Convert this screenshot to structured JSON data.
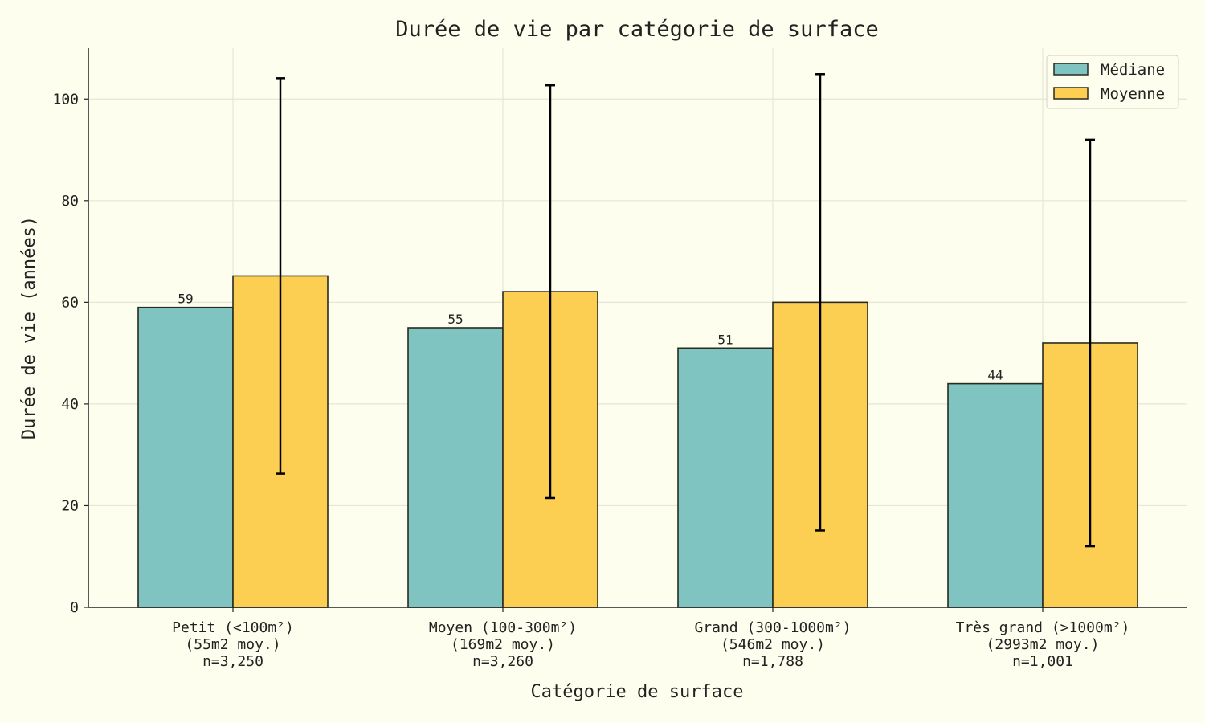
{
  "chart_data": {
    "type": "bar",
    "title": "Durée de vie par catégorie de surface",
    "xlabel": "Catégorie de surface",
    "ylabel": "Durée de vie (années)",
    "ylim": [
      0,
      110
    ],
    "yticks": [
      0,
      20,
      40,
      60,
      80,
      100
    ],
    "grid": true,
    "legend_position": "top-right",
    "categories": [
      [
        "Petit (<100m²)",
        "(55m2 moy.)",
        "n=3,250"
      ],
      [
        "Moyen (100-300m²)",
        "(169m2 moy.)",
        "n=3,260"
      ],
      [
        "Grand (300-1000m²)",
        "(546m2 moy.)",
        "n=1,788"
      ],
      [
        "Très grand (>1000m²)",
        "(2993m2 moy.)",
        "n=1,001"
      ]
    ],
    "series": [
      {
        "name": "Médiane",
        "color": "#7fc4c0",
        "values": [
          59,
          55,
          51,
          44
        ],
        "labels": [
          "59",
          "55",
          "51",
          "44"
        ]
      },
      {
        "name": "Moyenne",
        "color": "#fccf52",
        "values": [
          65.2,
          62.1,
          60.0,
          52.0
        ],
        "error": [
          38.9,
          40.6,
          44.9,
          40.0
        ]
      }
    ]
  }
}
